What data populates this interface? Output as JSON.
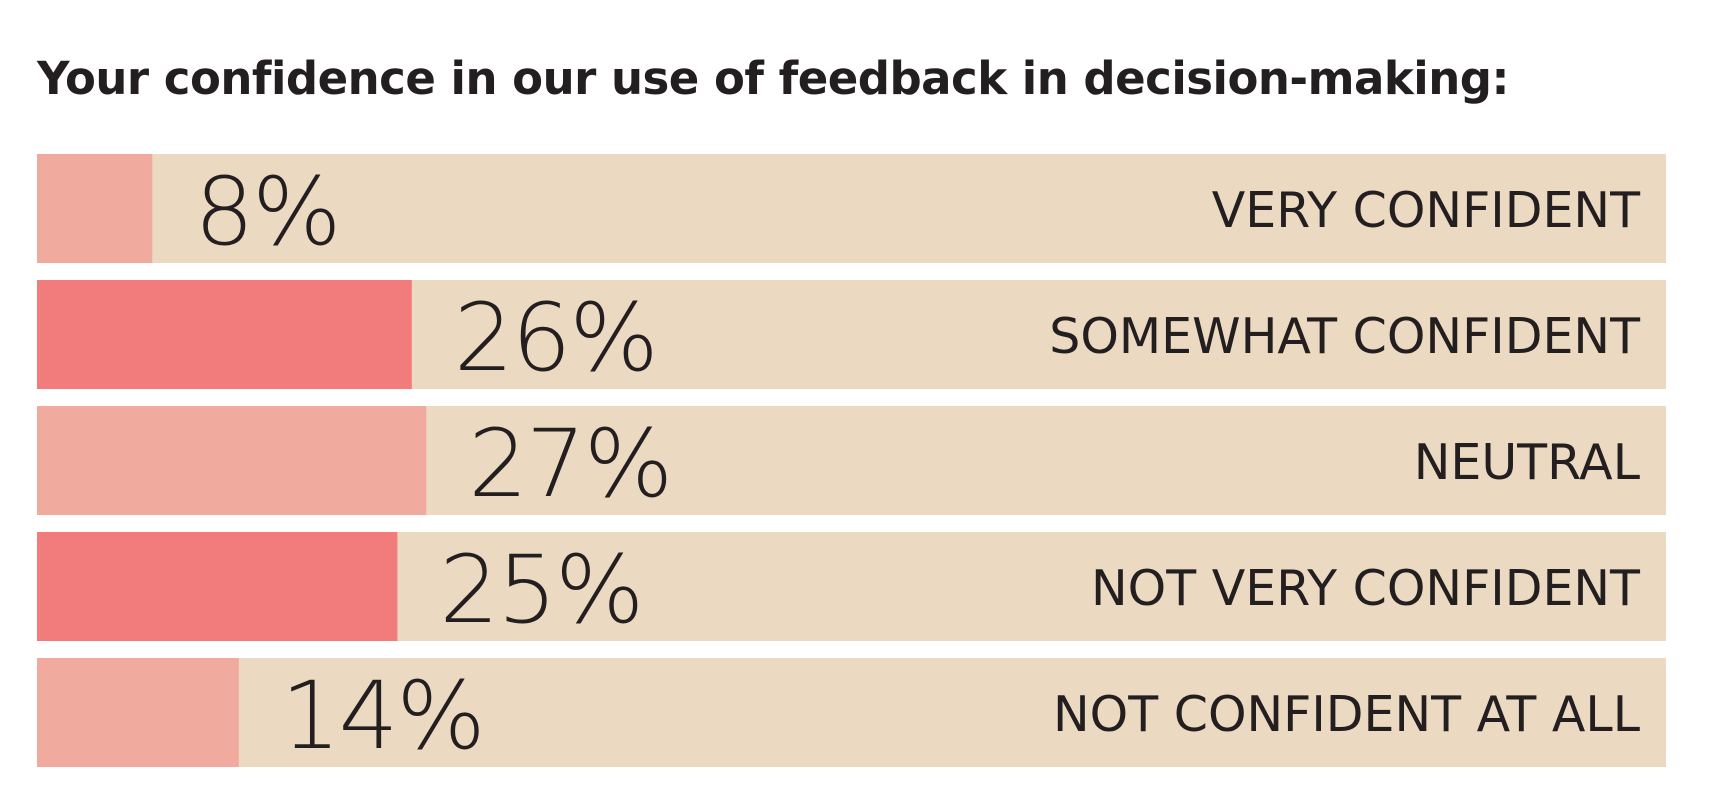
{
  "chart_data": {
    "type": "bar",
    "orientation": "horizontal",
    "title": "Your confidence in our use of feedback in decision-making:",
    "categories": [
      "VERY CONFIDENT",
      "SOMEWHAT CONFIDENT",
      "NEUTRAL",
      "NOT VERY CONFIDENT",
      "NOT CONFIDENT AT ALL"
    ],
    "values": [
      8,
      26,
      27,
      25,
      14
    ],
    "value_labels": [
      "8%",
      "26%",
      "27%",
      "25%",
      "14%"
    ],
    "xlim": [
      0,
      113
    ],
    "grid": false,
    "legend": "none"
  },
  "colors": {
    "track": "#ebdac1",
    "bar_light": "#f0aa9e",
    "bar_dark": "#f27b7b",
    "text": "#231f20"
  }
}
